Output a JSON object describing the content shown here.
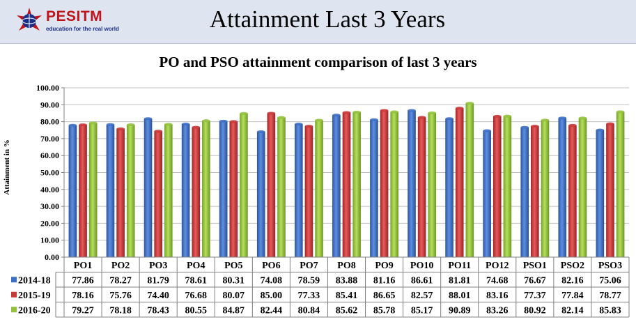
{
  "header": {
    "logo_name": "PESITM",
    "logo_tagline": "education for the real world",
    "title": "Attainment Last 3 Years"
  },
  "colors": {
    "banner_bg": "#dfe4f1",
    "series": [
      "#3f6fc4",
      "#c9393a",
      "#94c23e"
    ]
  },
  "chart_data": {
    "type": "bar",
    "title": "PO and PSO attainment comparison of last 3 years",
    "xlabel": "",
    "ylabel": "Attainment in %",
    "ylim": [
      0,
      100
    ],
    "y_ticks": [
      "0.00",
      "10.00",
      "20.00",
      "30.00",
      "40.00",
      "50.00",
      "60.00",
      "70.00",
      "80.00",
      "90.00",
      "100.00"
    ],
    "grid": true,
    "legend": "data-table-left",
    "categories": [
      "PO1",
      "PO2",
      "PO3",
      "PO4",
      "PO5",
      "PO6",
      "PO7",
      "PO8",
      "PO9",
      "PO10",
      "PO11",
      "PO12",
      "PSO1",
      "PSO2",
      "PSO3"
    ],
    "series": [
      {
        "name": "2014-18",
        "values": [
          "77.86",
          "78.27",
          "81.79",
          "78.61",
          "80.31",
          "74.08",
          "78.59",
          "83.88",
          "81.16",
          "86.61",
          "81.81",
          "74.68",
          "76.67",
          "82.16",
          "75.06"
        ]
      },
      {
        "name": "2015-19",
        "values": [
          "78.16",
          "75.76",
          "74.40",
          "76.68",
          "80.07",
          "85.00",
          "77.33",
          "85.41",
          "86.65",
          "82.57",
          "88.01",
          "83.16",
          "77.37",
          "77.84",
          "78.77"
        ]
      },
      {
        "name": "2016-20",
        "values": [
          "79.27",
          "78.18",
          "78.43",
          "80.55",
          "84.87",
          "82.44",
          "80.84",
          "85.62",
          "85.78",
          "85.17",
          "90.89",
          "83.26",
          "80.92",
          "82.14",
          "85.83"
        ]
      }
    ]
  }
}
